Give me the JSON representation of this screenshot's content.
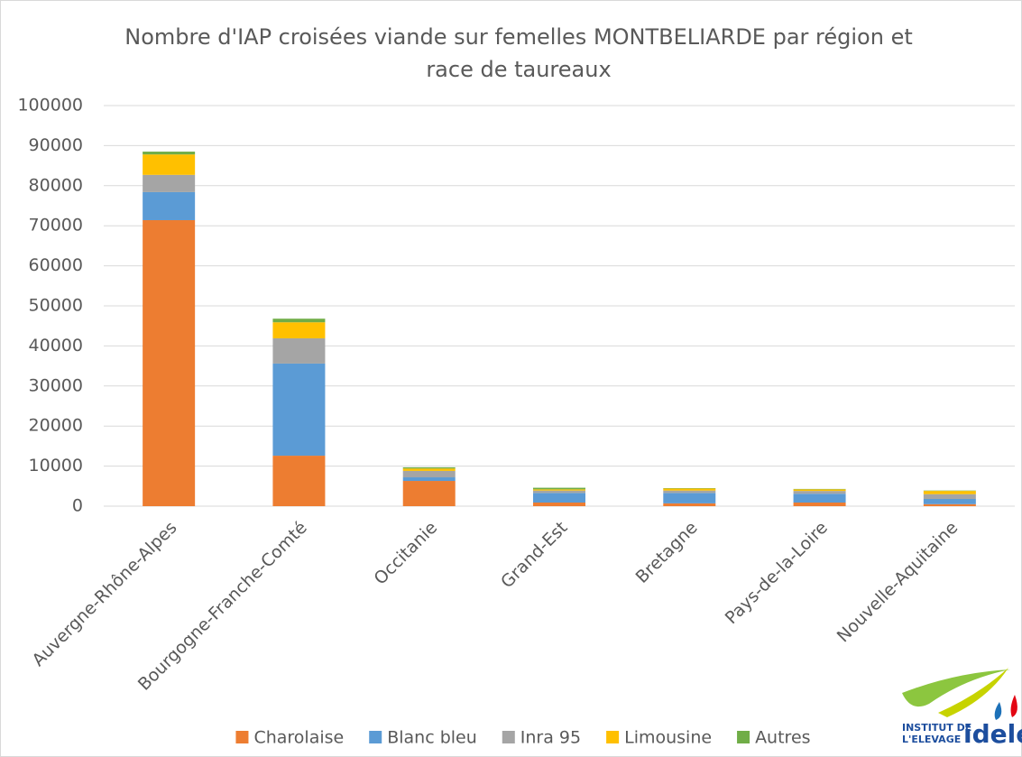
{
  "chart_data": {
    "type": "stacked_bar",
    "title": [
      "Nombre d'IAP croisées viande sur femelles MONTBELIARDE par région et",
      "race de taureaux"
    ],
    "categories": [
      "Auvergne-Rhône-Alpes",
      "Bourgogne-Franche-Comté",
      "Occitanie",
      "Grand-Est",
      "Bretagne",
      "Pays-de-la-Loire",
      "Nouvelle-Aquitaine"
    ],
    "series": [
      {
        "name": "Charolaise",
        "color": "#ed7d31",
        "values": [
          71400,
          12600,
          6300,
          900,
          700,
          900,
          500
        ]
      },
      {
        "name": "Blanc bleu",
        "color": "#5b9bd5",
        "values": [
          7000,
          23000,
          900,
          2400,
          2600,
          2200,
          1300
        ]
      },
      {
        "name": "Inra 95",
        "color": "#a5a5a5",
        "values": [
          4300,
          6300,
          1600,
          600,
          600,
          700,
          1200
        ]
      },
      {
        "name": "Limousine",
        "color": "#ffc000",
        "values": [
          5100,
          4000,
          600,
          300,
          500,
          400,
          800
        ]
      },
      {
        "name": "Autres",
        "color": "#70ad47",
        "values": [
          700,
          900,
          300,
          400,
          100,
          100,
          100
        ]
      }
    ],
    "ylim": [
      0,
      100000
    ],
    "yticks": [
      0,
      10000,
      20000,
      30000,
      40000,
      50000,
      60000,
      70000,
      80000,
      90000,
      100000
    ],
    "grid": true,
    "legend": "bottom"
  },
  "logo": {
    "line1": "INSTITUT DE",
    "line2": "L'ELEVAGE",
    "name": "idele"
  }
}
